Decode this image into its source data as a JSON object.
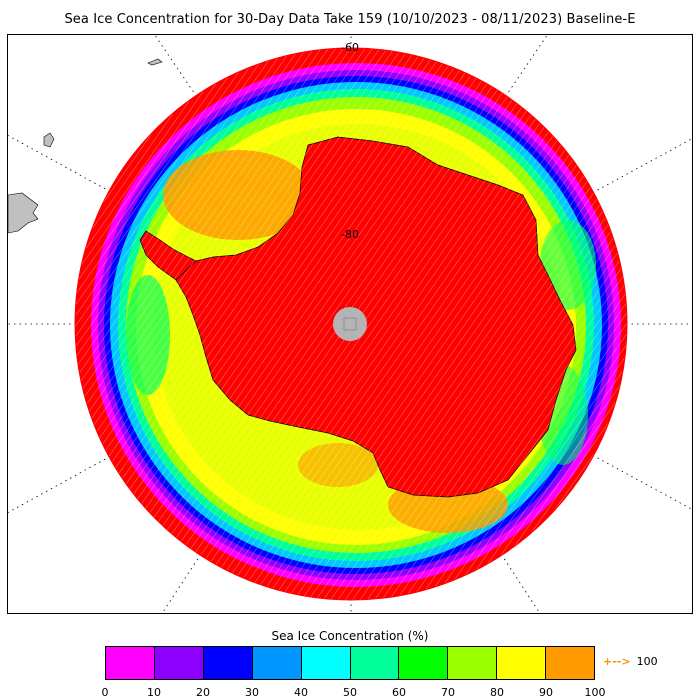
{
  "title": "Sea Ice Concentration for 30-Day Data Take 159 (10/10/2023 - 08/11/2023) Baseline-E",
  "map": {
    "lat_labels": [
      "-60",
      "-80"
    ],
    "colors": {
      "ocean_red": "#ff0000",
      "land_gray": "#c0c0c0",
      "pole_hole": "#b4b4b4",
      "ring_magenta": "#ff00ff",
      "ring_purple": "#9000ff",
      "ring_blue": "#0000ff",
      "ring_cyan": "#00ffff",
      "ring_green": "#00ff60",
      "ring_lime": "#9cff00",
      "ring_yellow": "#ffff00",
      "ring_orange": "#ff9a00",
      "continent": "#ff0000"
    }
  },
  "legend": {
    "title": "Sea Ice Concentration (%)",
    "segments": [
      {
        "from": 0,
        "to": 10,
        "color": "#ff00ff"
      },
      {
        "from": 10,
        "to": 20,
        "color": "#8c00ff"
      },
      {
        "from": 20,
        "to": 30,
        "color": "#0000ff"
      },
      {
        "from": 30,
        "to": 40,
        "color": "#0096ff"
      },
      {
        "from": 40,
        "to": 50,
        "color": "#00ffff"
      },
      {
        "from": 50,
        "to": 60,
        "color": "#00ff9a"
      },
      {
        "from": 60,
        "to": 70,
        "color": "#00ff00"
      },
      {
        "from": 70,
        "to": 80,
        "color": "#9cff00"
      },
      {
        "from": 80,
        "to": 90,
        "color": "#ffff00"
      },
      {
        "from": 90,
        "to": 100,
        "color": "#ff9a00"
      }
    ],
    "ticks": [
      "0",
      "10",
      "20",
      "30",
      "40",
      "50",
      "60",
      "70",
      "80",
      "90",
      "100"
    ],
    "overflow_arrow": "+-->",
    "overflow_value": "100"
  }
}
